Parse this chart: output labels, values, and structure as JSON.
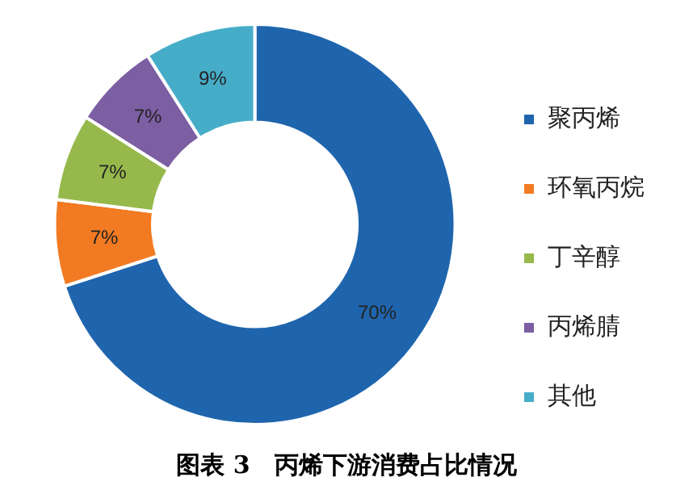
{
  "chart_data": {
    "type": "donut",
    "title": "图表 3　丙烯下游消费占比情况",
    "categories": [
      "聚丙烯",
      "环氧丙烷",
      "丁辛醇",
      "丙烯腈",
      "其他"
    ],
    "values": [
      70,
      7,
      7,
      7,
      9
    ],
    "value_labels": [
      "70%",
      "7%",
      "7%",
      "7%",
      "9%"
    ],
    "colors": [
      "#1f65ad",
      "#f27a22",
      "#97b94c",
      "#7c5ea3",
      "#46adc8"
    ],
    "legend": "right"
  }
}
